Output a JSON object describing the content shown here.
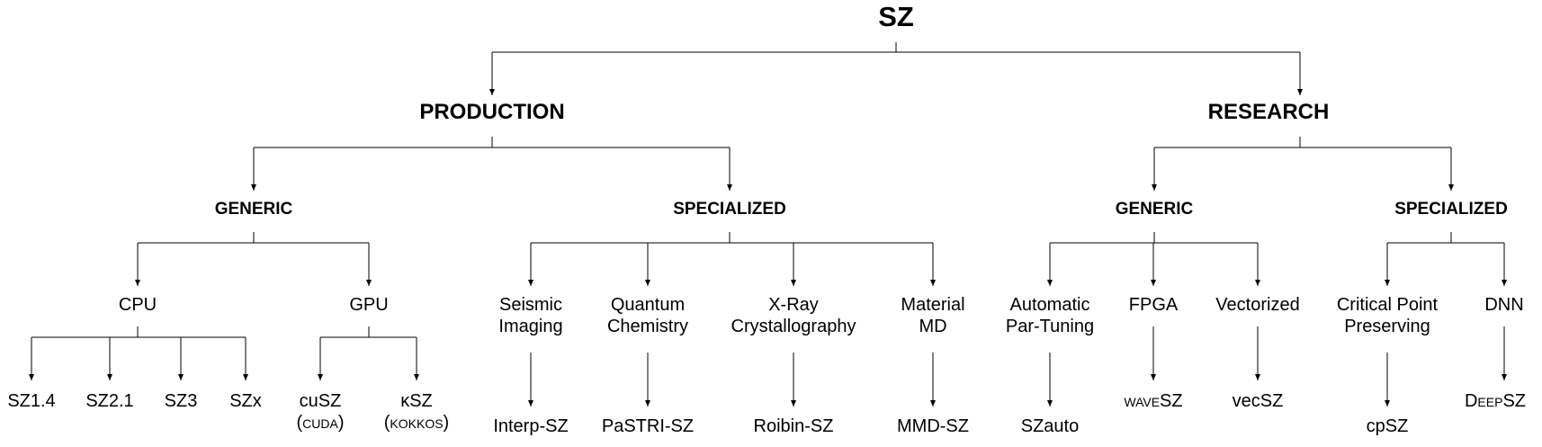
{
  "root": {
    "label": "SZ"
  },
  "production": {
    "label": "PRODUCTION",
    "generic": {
      "label": "GENERIC",
      "cpu": {
        "label": "CPU",
        "leaves": [
          "SZ1.4",
          "SZ2.1",
          "SZ3",
          "SZx"
        ]
      },
      "gpu": {
        "label": "GPU",
        "leaves": [
          {
            "name": "cuSZ",
            "sub": "(cuda)"
          },
          {
            "name": "κSZ",
            "sub": "(kokkos)"
          }
        ]
      }
    },
    "specialized": {
      "label": "SPECIALIZED",
      "children": [
        {
          "line1": "Seismic",
          "line2": "Imaging",
          "leaf": "Interp-SZ"
        },
        {
          "line1": "Quantum",
          "line2": "Chemistry",
          "leaf": "PaSTRI-SZ"
        },
        {
          "line1": "X-Ray",
          "line2": "Crystallography",
          "leaf": "Roibin-SZ"
        },
        {
          "line1": "Material",
          "line2": "MD",
          "leaf": "MMD-SZ"
        }
      ]
    }
  },
  "research": {
    "label": "RESEARCH",
    "generic": {
      "label": "GENERIC",
      "children": [
        {
          "line1": "Automatic",
          "line2": "Par-Tuning",
          "leaf": "SZauto"
        },
        {
          "line1": "FPGA",
          "line2": "",
          "leaf": "waveSZ"
        },
        {
          "line1": "Vectorized",
          "line2": "",
          "leaf": "vecSZ"
        }
      ]
    },
    "specialized": {
      "label": "SPECIALIZED",
      "children": [
        {
          "line1": "Critical Point",
          "line2": "Preserving",
          "leaf": "cpSZ"
        },
        {
          "line1": "DNN",
          "line2": "",
          "leaf": "DeepSZ"
        }
      ]
    }
  }
}
